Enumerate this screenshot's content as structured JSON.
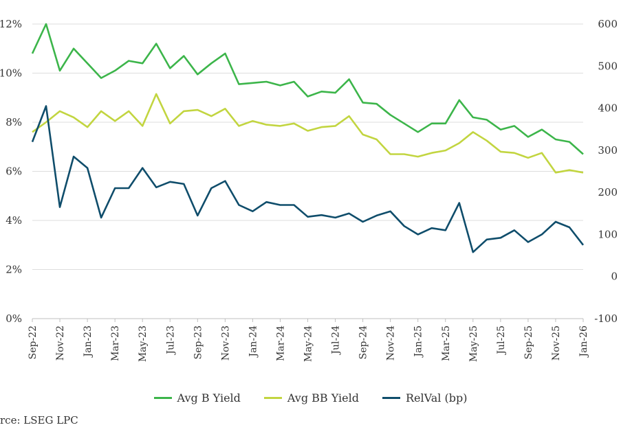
{
  "chart_data": {
    "type": "line",
    "categories": [
      "Sep-22",
      "Oct-22",
      "Nov-22",
      "Dec-22",
      "Jan-23",
      "Feb-23",
      "Mar-23",
      "Apr-23",
      "May-23",
      "Jun-23",
      "Jul-23",
      "Aug-23",
      "Sep-23",
      "Oct-23",
      "Nov-23",
      "Dec-23",
      "Jan-24",
      "Feb-24",
      "Mar-24",
      "Apr-24",
      "May-24",
      "Jun-24",
      "Jul-24",
      "Aug-24",
      "Sep-24",
      "Oct-24",
      "Nov-24",
      "Dec-24",
      "Jan-25",
      "Feb-25",
      "Mar-25",
      "Apr-25",
      "May-25",
      "Jun-25",
      "Jul-25",
      "Aug-25",
      "Sep-25",
      "Oct-25",
      "Nov-25",
      "Dec-25",
      "Jan-26"
    ],
    "xtick_labels": [
      "Sep-22",
      "Nov-22",
      "Jan-23",
      "Mar-23",
      "May-23",
      "Jul-23",
      "Sep-23",
      "Nov-23",
      "Jan-24",
      "Mar-24",
      "May-24",
      "Jul-24",
      "Sep-24",
      "Nov-24",
      "Jan-25",
      "Mar-25",
      "May-25",
      "Jul-25",
      "Sep-25",
      "Nov-25",
      "Jan-26"
    ],
    "y_left": {
      "ticks": [
        "0%",
        "2%",
        "4%",
        "6%",
        "8%",
        "10%",
        "12%"
      ],
      "range": [
        0,
        12
      ]
    },
    "y_right": {
      "ticks": [
        "-100",
        "0",
        "100",
        "200",
        "300",
        "400",
        "500",
        "600"
      ],
      "range": [
        -100,
        600
      ]
    },
    "grid": true,
    "legend_position": "bottom",
    "series": [
      {
        "name": "Avg B Yield",
        "axis": "left",
        "color": "#3cb54a",
        "values": [
          10.8,
          12.0,
          10.1,
          11.0,
          10.4,
          9.8,
          10.1,
          10.5,
          10.4,
          11.2,
          10.2,
          10.7,
          9.95,
          10.4,
          10.8,
          9.55,
          9.6,
          9.65,
          9.5,
          9.65,
          9.05,
          9.25,
          9.2,
          9.75,
          8.8,
          8.75,
          8.3,
          7.95,
          7.6,
          7.95,
          7.95,
          8.9,
          8.2,
          8.1,
          7.7,
          7.85,
          7.4,
          7.7,
          7.3,
          7.2,
          6.7
        ]
      },
      {
        "name": "Avg BB Yield",
        "axis": "left",
        "color": "#c2d540",
        "values": [
          7.6,
          8.0,
          8.45,
          8.2,
          7.8,
          8.45,
          8.05,
          8.45,
          7.85,
          9.15,
          7.95,
          8.45,
          8.5,
          8.25,
          8.55,
          7.85,
          8.05,
          7.9,
          7.85,
          7.95,
          7.65,
          7.8,
          7.85,
          8.25,
          7.5,
          7.3,
          6.7,
          6.7,
          6.6,
          6.75,
          6.85,
          7.15,
          7.6,
          7.25,
          6.8,
          6.75,
          6.55,
          6.75,
          5.95,
          6.05,
          5.95
        ]
      },
      {
        "name": "RelVal (bp)",
        "axis": "right",
        "color": "#0f4d6b",
        "values": [
          320,
          405,
          165,
          285,
          258,
          140,
          210,
          210,
          258,
          212,
          225,
          220,
          145,
          210,
          227,
          170,
          155,
          177,
          170,
          170,
          142,
          146,
          140,
          150,
          130,
          145,
          155,
          120,
          100,
          115,
          110,
          175,
          58,
          88,
          92,
          110,
          82,
          100,
          130,
          117,
          75
        ]
      }
    ]
  },
  "legend": {
    "b_label": "Avg B Yield",
    "bb_label": "Avg BB Yield",
    "relval_label": "RelVal (bp)"
  },
  "footer": {
    "source": "rce: LSEG LPC"
  }
}
